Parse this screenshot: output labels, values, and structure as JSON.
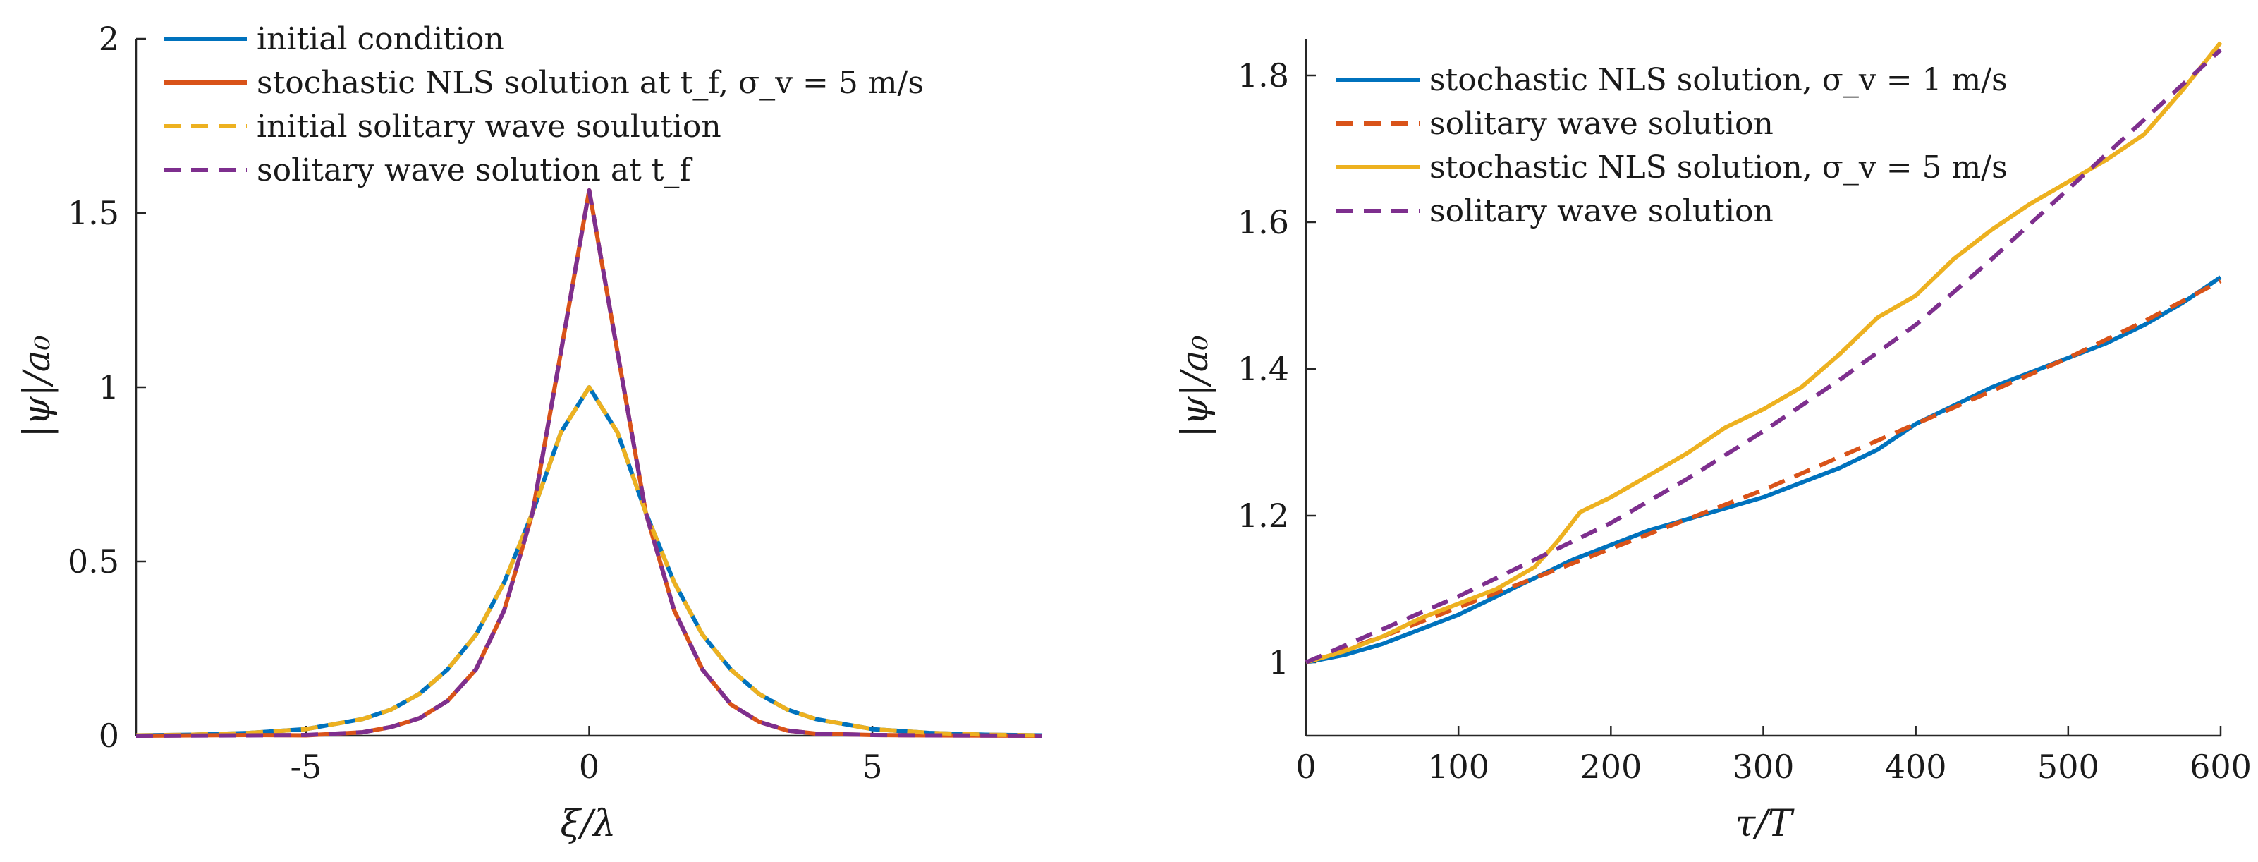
{
  "colors": {
    "blue": "#0072BD",
    "red": "#D95319",
    "yellow": "#EDB120",
    "purple": "#7E2F8E",
    "axis": "#262626"
  },
  "chart_data": [
    {
      "type": "line",
      "title": "",
      "xlabel": "ξ/λ",
      "ylabel": "|ψ|/a₀",
      "xlim": [
        -8,
        8
      ],
      "ylim": [
        0,
        2
      ],
      "xticks": [
        -5,
        0,
        5
      ],
      "xtick_labels": [
        "-5",
        "0",
        "5"
      ],
      "yticks": [
        0,
        0.5,
        1,
        1.5,
        2
      ],
      "ytick_labels": [
        "0",
        "0.5",
        "1",
        "1.5",
        "2"
      ],
      "grid": false,
      "legend_position": "top-left",
      "series": [
        {
          "name": "initial condition",
          "color": "blue",
          "style": "solid",
          "x": [
            -8,
            -7,
            -6,
            -5,
            -4,
            -3.5,
            -3,
            -2.5,
            -2,
            -1.5,
            -1,
            -0.5,
            0,
            0.5,
            1,
            1.5,
            2,
            2.5,
            3,
            3.5,
            4,
            5,
            6,
            7,
            8
          ],
          "y": [
            0.001,
            0.003,
            0.008,
            0.019,
            0.048,
            0.075,
            0.12,
            0.19,
            0.29,
            0.44,
            0.64,
            0.87,
            1.0,
            0.87,
            0.64,
            0.44,
            0.29,
            0.19,
            0.12,
            0.075,
            0.048,
            0.019,
            0.008,
            0.003,
            0.001
          ]
        },
        {
          "name": "stochastic NLS solution at t_f, σ_v = 5 m/s",
          "color": "red",
          "style": "solid",
          "x": [
            -8,
            -6,
            -5,
            -4,
            -3.5,
            -3,
            -2.5,
            -2,
            -1.5,
            -1,
            -0.5,
            0,
            0.5,
            1,
            1.5,
            2,
            2.5,
            3,
            3.5,
            4,
            5,
            6,
            8
          ],
          "y": [
            0.0,
            0.002,
            0.001,
            0.01,
            0.025,
            0.05,
            0.1,
            0.19,
            0.36,
            0.64,
            1.1,
            1.565,
            1.1,
            0.64,
            0.36,
            0.19,
            0.09,
            0.04,
            0.015,
            0.006,
            0.002,
            0.001,
            0.0
          ]
        },
        {
          "name": "initial solitary wave soulution",
          "color": "yellow",
          "style": "dashed",
          "x": [
            -8,
            -7,
            -6,
            -5,
            -4,
            -3.5,
            -3,
            -2.5,
            -2,
            -1.5,
            -1,
            -0.5,
            0,
            0.5,
            1,
            1.5,
            2,
            2.5,
            3,
            3.5,
            4,
            5,
            6,
            7,
            8
          ],
          "y": [
            0.001,
            0.003,
            0.008,
            0.019,
            0.048,
            0.075,
            0.12,
            0.19,
            0.29,
            0.44,
            0.64,
            0.87,
            1.0,
            0.87,
            0.64,
            0.44,
            0.29,
            0.19,
            0.12,
            0.075,
            0.048,
            0.019,
            0.008,
            0.003,
            0.001
          ]
        },
        {
          "name": "solitary wave solution at t_f",
          "color": "purple",
          "style": "dashed",
          "x": [
            -8,
            -6,
            -5,
            -4,
            -3.5,
            -3,
            -2.5,
            -2,
            -1.5,
            -1,
            -0.5,
            0,
            0.5,
            1,
            1.5,
            2,
            2.5,
            3,
            3.5,
            4,
            5,
            6,
            8
          ],
          "y": [
            0.0,
            0.001,
            0.002,
            0.01,
            0.025,
            0.05,
            0.1,
            0.19,
            0.36,
            0.64,
            1.1,
            1.565,
            1.1,
            0.64,
            0.36,
            0.19,
            0.09,
            0.04,
            0.015,
            0.006,
            0.002,
            0.001,
            0.0
          ]
        }
      ]
    },
    {
      "type": "line",
      "title": "",
      "xlabel": "τ/T",
      "ylabel": "|ψ|/a₀",
      "xlim": [
        0,
        600
      ],
      "ylim": [
        0.9,
        1.85
      ],
      "xticks": [
        0,
        100,
        200,
        300,
        400,
        500,
        600
      ],
      "xtick_labels": [
        "0",
        "100",
        "200",
        "300",
        "400",
        "500",
        "600"
      ],
      "yticks": [
        1.0,
        1.2,
        1.4,
        1.6,
        1.8
      ],
      "ytick_labels": [
        "1",
        "1.2",
        "1.4",
        "1.6",
        "1.8"
      ],
      "grid": false,
      "legend_position": "top-left",
      "series": [
        {
          "name": "stochastic NLS solution, σ_v = 1 m/s",
          "color": "blue",
          "style": "solid",
          "x": [
            0,
            25,
            50,
            75,
            100,
            125,
            150,
            175,
            200,
            225,
            250,
            275,
            300,
            325,
            350,
            375,
            400,
            425,
            450,
            475,
            500,
            525,
            550,
            575,
            600
          ],
          "y": [
            1.0,
            1.01,
            1.025,
            1.045,
            1.065,
            1.09,
            1.115,
            1.14,
            1.16,
            1.18,
            1.195,
            1.21,
            1.225,
            1.245,
            1.265,
            1.29,
            1.325,
            1.35,
            1.375,
            1.395,
            1.415,
            1.435,
            1.46,
            1.49,
            1.525
          ]
        },
        {
          "name": "solitary wave solution",
          "color": "red",
          "style": "dashed",
          "x": [
            0,
            50,
            100,
            150,
            200,
            250,
            300,
            350,
            400,
            450,
            500,
            550,
            600
          ],
          "y": [
            1.0,
            1.035,
            1.075,
            1.115,
            1.155,
            1.195,
            1.235,
            1.28,
            1.325,
            1.37,
            1.415,
            1.465,
            1.52
          ]
        },
        {
          "name": "stochastic NLS solution, σ_v = 5 m/s",
          "color": "yellow",
          "style": "solid",
          "x": [
            0,
            25,
            50,
            75,
            100,
            125,
            150,
            165,
            180,
            200,
            225,
            250,
            275,
            300,
            325,
            350,
            375,
            400,
            425,
            450,
            475,
            500,
            525,
            550,
            575,
            600
          ],
          "y": [
            1.0,
            1.015,
            1.035,
            1.06,
            1.08,
            1.1,
            1.13,
            1.165,
            1.205,
            1.225,
            1.255,
            1.285,
            1.32,
            1.345,
            1.375,
            1.42,
            1.47,
            1.5,
            1.55,
            1.59,
            1.625,
            1.655,
            1.685,
            1.72,
            1.78,
            1.845
          ]
        },
        {
          "name": "solitary wave solution",
          "color": "purple",
          "style": "dashed",
          "x": [
            0,
            50,
            100,
            150,
            200,
            250,
            300,
            350,
            400,
            450,
            500,
            550,
            600
          ],
          "y": [
            1.0,
            1.045,
            1.09,
            1.14,
            1.19,
            1.25,
            1.315,
            1.385,
            1.46,
            1.55,
            1.645,
            1.74,
            1.835
          ]
        }
      ]
    }
  ]
}
